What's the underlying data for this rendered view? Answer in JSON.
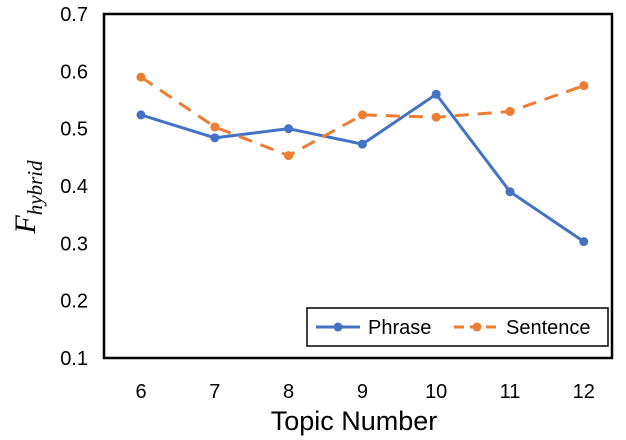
{
  "chart_data": {
    "type": "line",
    "xlabel": "Topic Number",
    "ylabel_base": "F",
    "ylabel_sub": "hybrid",
    "categories": [
      "6",
      "7",
      "8",
      "9",
      "10",
      "11",
      "12"
    ],
    "ylim": [
      0.1,
      0.7
    ],
    "yticks": [
      "0.1",
      "0.2",
      "0.3",
      "0.4",
      "0.5",
      "0.6",
      "0.7"
    ],
    "grid": false,
    "legend_position": "bottom-right",
    "series": [
      {
        "name": "Phrase",
        "color": "#4472C4",
        "dash": "solid",
        "values": [
          0.524,
          0.484,
          0.5,
          0.473,
          0.56,
          0.39,
          0.303
        ]
      },
      {
        "name": "Sentence",
        "color": "#ED7D31",
        "dash": "dashed",
        "values": [
          0.59,
          0.503,
          0.453,
          0.524,
          0.52,
          0.53,
          0.575
        ]
      }
    ]
  }
}
